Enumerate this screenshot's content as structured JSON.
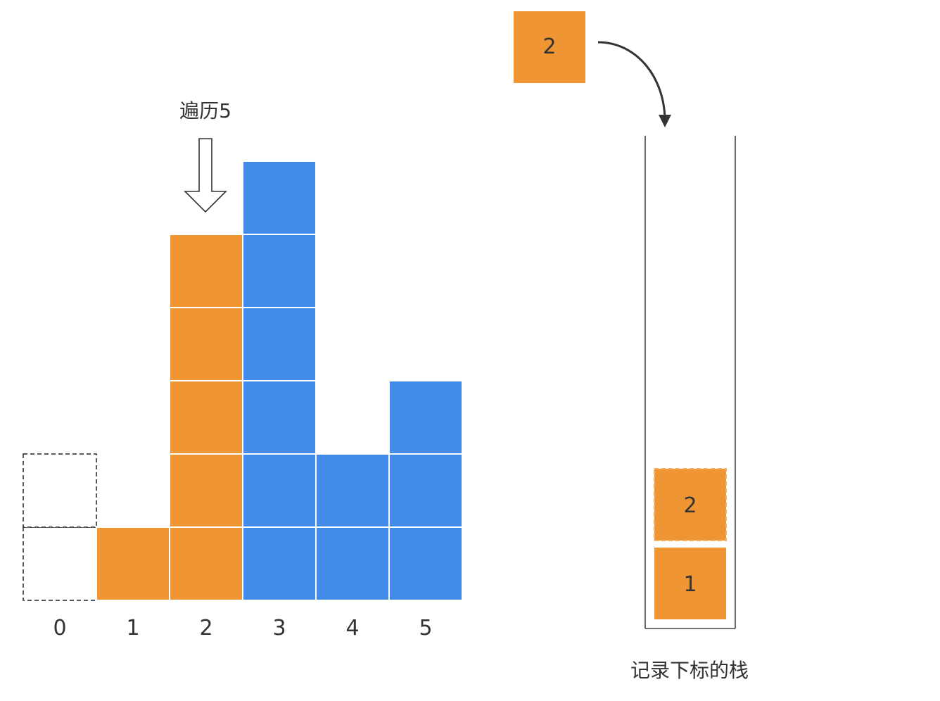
{
  "traverse_label": "遍历5",
  "histogram": {
    "indices": [
      "0",
      "1",
      "2",
      "3",
      "4",
      "5"
    ],
    "bars": [
      {
        "index": 0,
        "height": 2,
        "style": "dashed"
      },
      {
        "index": 1,
        "height": 1,
        "style": "orange"
      },
      {
        "index": 2,
        "height": 5,
        "style": "orange"
      },
      {
        "index": 3,
        "height": 6,
        "style": "blue"
      },
      {
        "index": 4,
        "height": 2,
        "style": "blue"
      },
      {
        "index": 5,
        "height": 3,
        "style": "blue"
      }
    ],
    "pointer_index": 2
  },
  "popped": {
    "value": "2"
  },
  "stack": {
    "caption": "记录下标的栈",
    "items": [
      {
        "value": "1",
        "style": "orange"
      },
      {
        "value": "2",
        "style": "orange-dashed"
      }
    ]
  },
  "colors": {
    "orange": "#EF9533",
    "blue": "#418AE8",
    "cell_border": "#ffffff",
    "dashed": "#222222",
    "orange_dash": "#F5B060",
    "text": "#333333",
    "stack_wall": "#444444"
  }
}
